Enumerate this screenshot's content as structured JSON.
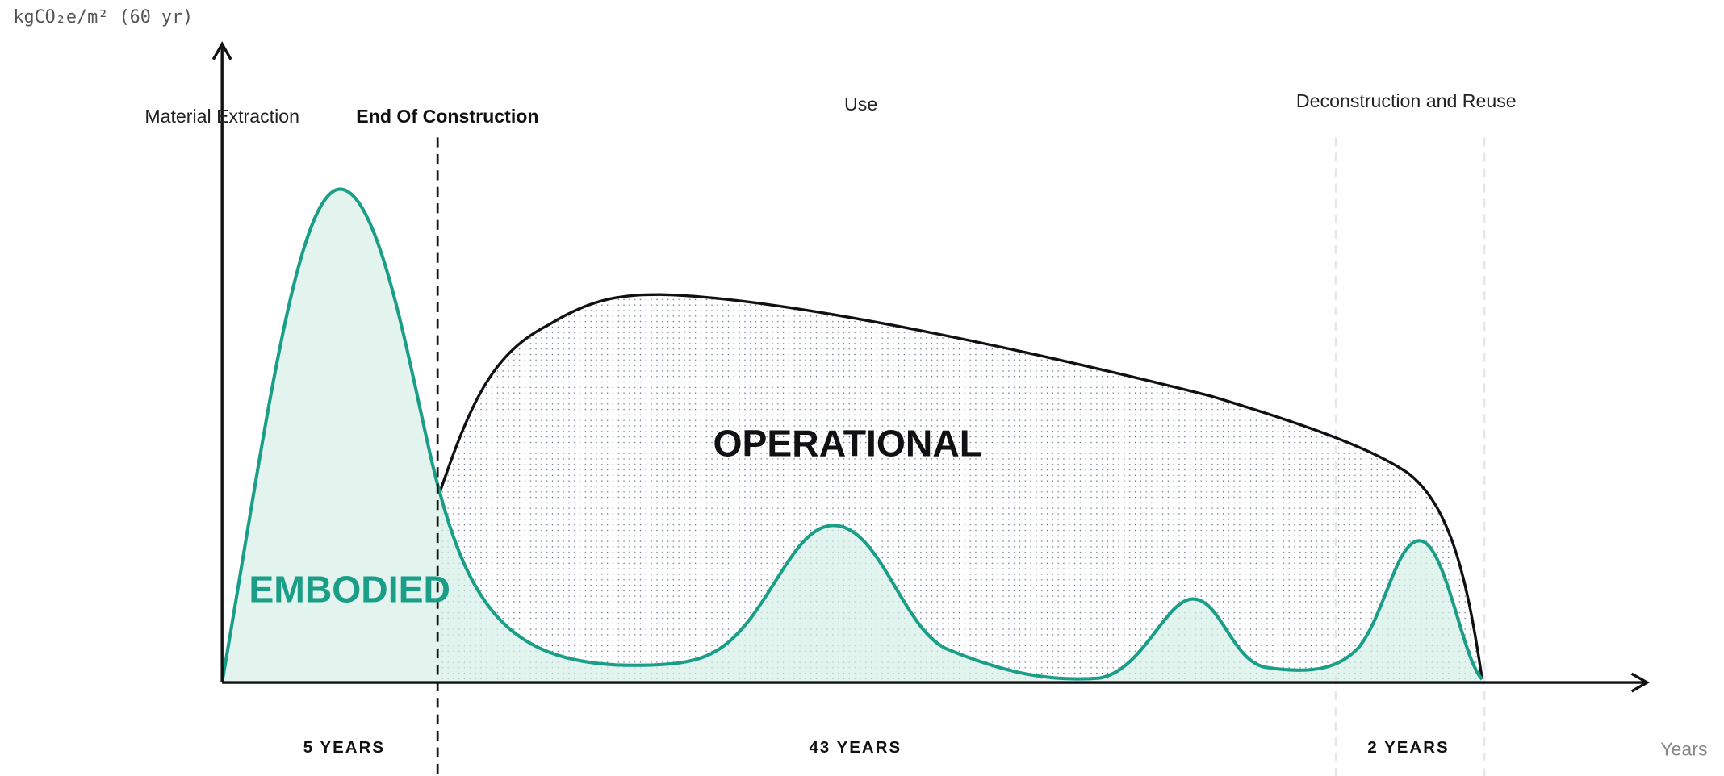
{
  "y_axis_label": "kgCO₂e/m² (60 yr)",
  "x_axis_label": "Years",
  "phases": [
    "Material Extraction",
    "End Of Construction",
    "Use",
    "Deconstruction and Reuse"
  ],
  "areas": {
    "embodied": "EMBODIED",
    "operational": "OPERATIONAL"
  },
  "durations": [
    "5 YEARS",
    "43 YEARS",
    "2 YEARS"
  ]
}
